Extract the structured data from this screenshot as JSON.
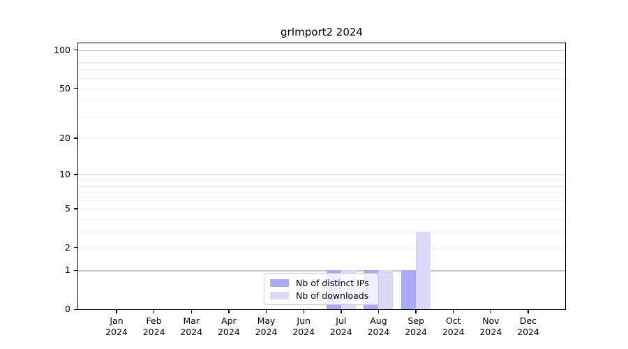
{
  "chart": {
    "title": "grImport2 2024"
  },
  "chart_data": {
    "type": "bar",
    "title": "grImport2 2024",
    "categories": [
      "Jan 2024",
      "Feb 2024",
      "Mar 2024",
      "Apr 2024",
      "May 2024",
      "Jun 2024",
      "Jul 2024",
      "Aug 2024",
      "Sep 2024",
      "Oct 2024",
      "Nov 2024",
      "Dec 2024"
    ],
    "x_tick_top": [
      "Jan",
      "Feb",
      "Mar",
      "Apr",
      "May",
      "Jun",
      "Jul",
      "Aug",
      "Sep",
      "Oct",
      "Nov",
      "Dec"
    ],
    "x_tick_bottom": "2024",
    "series": [
      {
        "name": "Nb of distinct IPs",
        "color": "#a9a9f4",
        "values": [
          0,
          0,
          0,
          0,
          0,
          0,
          1,
          1,
          1,
          0,
          0,
          0
        ]
      },
      {
        "name": "Nb of downloads",
        "color": "#dadaf8",
        "values": [
          0,
          0,
          0,
          0,
          0,
          0,
          1,
          1,
          3,
          0,
          0,
          0
        ]
      }
    ],
    "y_axis": {
      "scale": "log1p",
      "tick_values": [
        0,
        1,
        2,
        5,
        10,
        20,
        50,
        100
      ],
      "gridline_values": [
        1,
        2,
        3,
        4,
        5,
        6,
        7,
        8,
        9,
        10,
        20,
        30,
        40,
        50,
        60,
        70,
        80,
        90,
        100
      ],
      "major_gridline_values": [
        1,
        10,
        100
      ],
      "ylim": [
        0,
        112
      ]
    },
    "legend_position": "lower-center-inside",
    "colors": {
      "grid_minor": "#ececec",
      "grid_major": "#c6c6c6",
      "axis": "#000000",
      "background": "#ffffff"
    }
  }
}
